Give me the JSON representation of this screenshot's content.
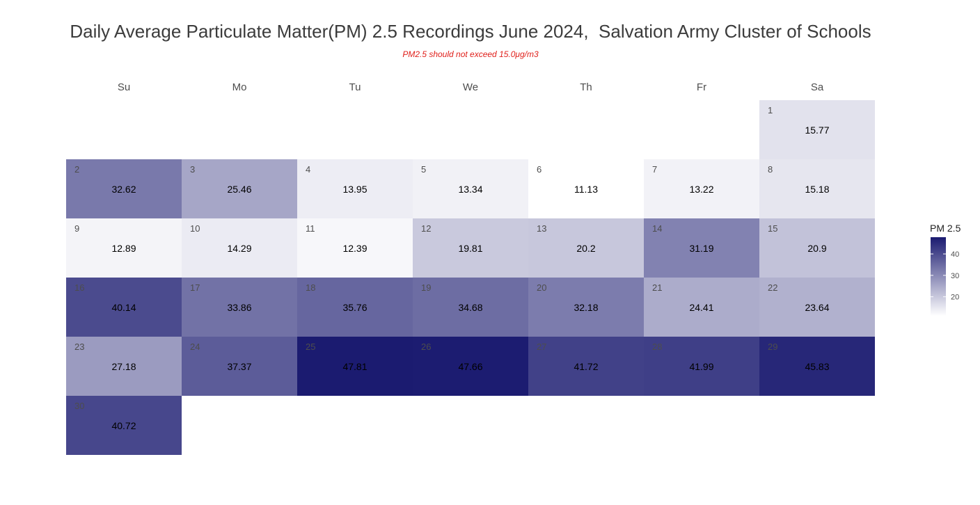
{
  "chart_data": {
    "type": "heatmap",
    "title": "Daily Average Particulate Matter(PM) 2.5 Recordings June 2024,  Salvation Army Cluster of Schools",
    "subtitle": "PM2.5 should not exceed 15.0μg/m3",
    "weekdays": [
      "Su",
      "Mo",
      "Tu",
      "We",
      "Th",
      "Fr",
      "Sa"
    ],
    "first_weekday_index": 6,
    "days": [
      1,
      2,
      3,
      4,
      5,
      6,
      7,
      8,
      9,
      10,
      11,
      12,
      13,
      14,
      15,
      16,
      17,
      18,
      19,
      20,
      21,
      22,
      23,
      24,
      25,
      26,
      27,
      28,
      29,
      30
    ],
    "values": [
      15.77,
      32.62,
      25.46,
      13.95,
      13.34,
      11.13,
      13.22,
      15.18,
      12.89,
      14.29,
      12.39,
      19.81,
      20.2,
      31.19,
      20.9,
      40.14,
      33.86,
      35.76,
      34.68,
      32.18,
      24.41,
      23.64,
      27.18,
      37.37,
      47.81,
      47.66,
      41.72,
      41.99,
      45.83,
      40.72
    ],
    "value_labels": [
      "15.77",
      "32.62",
      "25.46",
      "13.95",
      "13.34",
      "11.13",
      "13.22",
      "15.18",
      "12.89",
      "14.29",
      "12.39",
      "19.81",
      "20.2",
      "31.19",
      "20.9",
      "40.14",
      "33.86",
      "35.76",
      "34.68",
      "32.18",
      "24.41",
      "23.64",
      "27.18",
      "37.37",
      "47.81",
      "47.66",
      "41.72",
      "41.99",
      "45.83",
      "40.72"
    ],
    "legend": {
      "title": "PM 2.5",
      "ticks": [
        "20",
        "30",
        "40"
      ],
      "tick_values": [
        20,
        30,
        40
      ],
      "range": [
        11.13,
        47.81
      ],
      "placement": "right"
    },
    "colors": {
      "low": "#ffffff",
      "high": "#1b1b70"
    },
    "grid": false
  }
}
